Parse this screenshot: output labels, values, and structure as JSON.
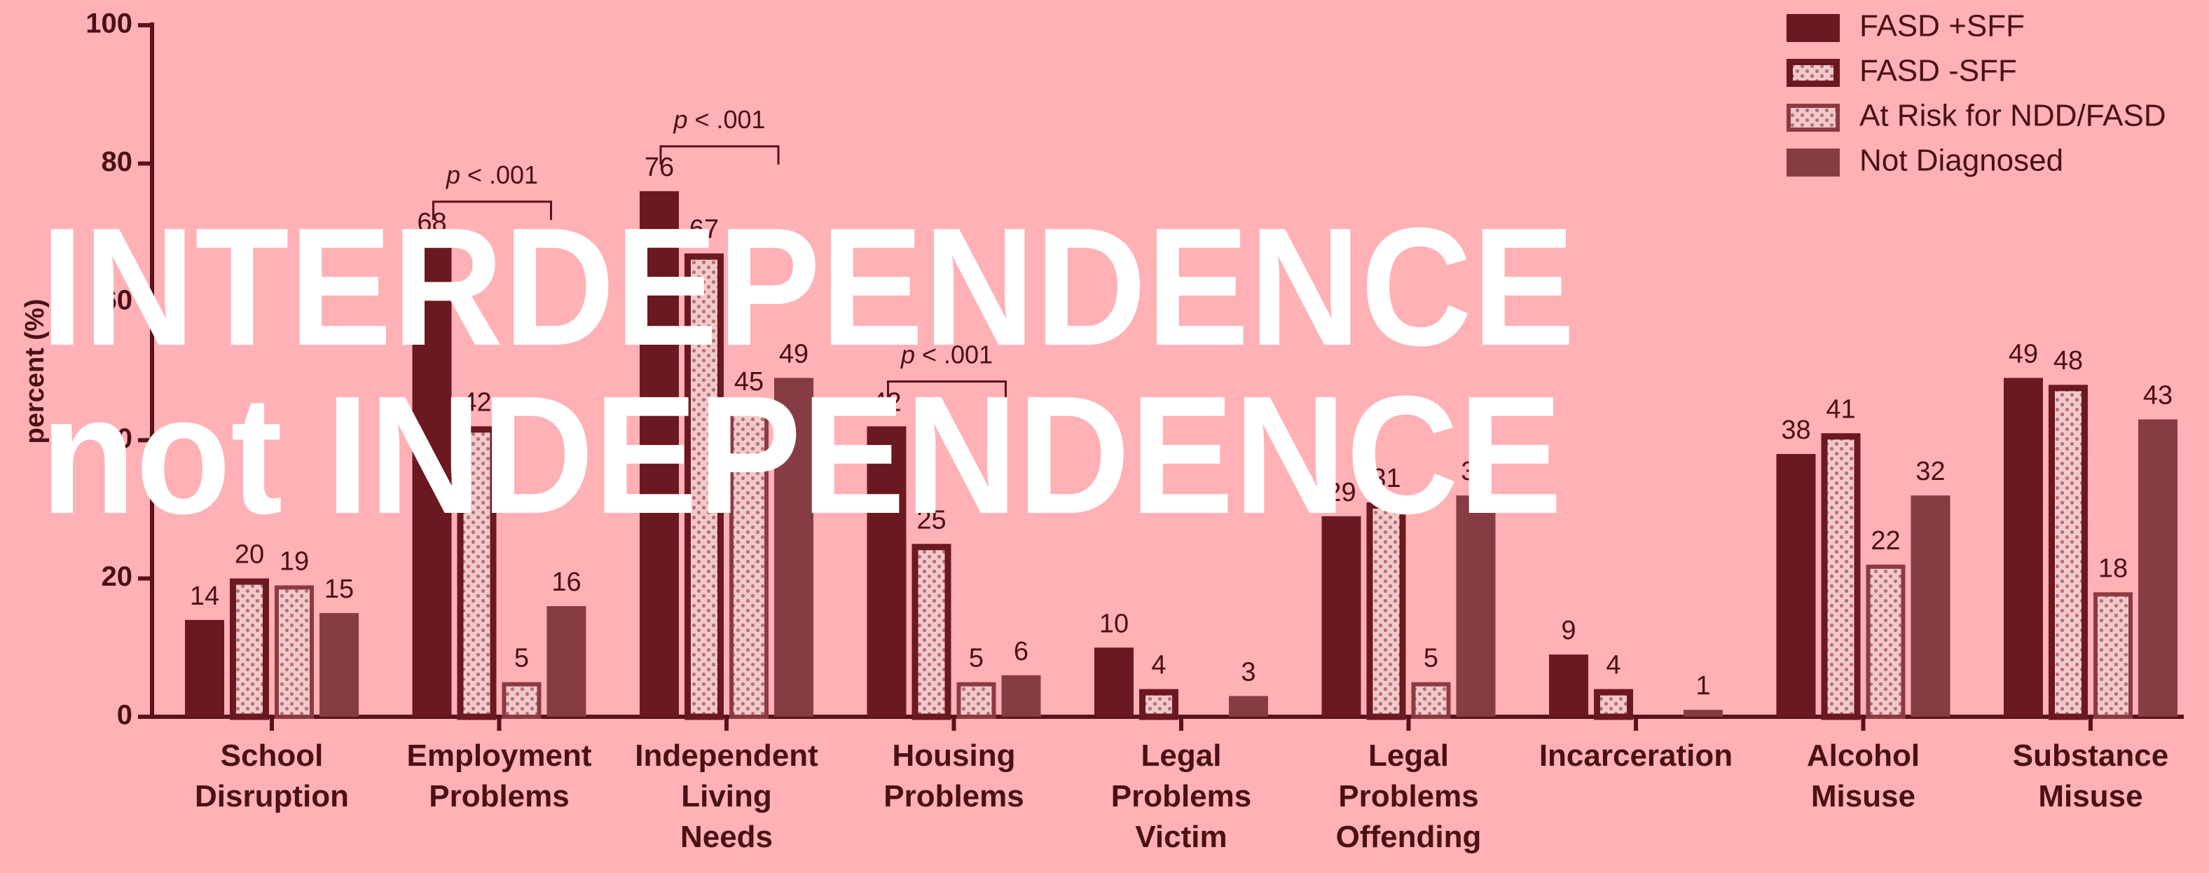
{
  "chart_data": {
    "type": "bar",
    "y_label": "percent (%)",
    "categories": [
      "School Disruption",
      "Employment Problems",
      "Independent Living Needs",
      "Housing Problems",
      "Legal Problems Victim",
      "Legal Problems Offending",
      "Incarceration",
      "Alcohol Misuse",
      "Substance Misuse"
    ],
    "series": [
      {
        "name": "FASD +SFF",
        "color": "#6b1820",
        "values": [
          14,
          68,
          76,
          42,
          10,
          29,
          9,
          38,
          49
        ]
      },
      {
        "name": "FASD -SFF",
        "color": "#6b1820",
        "values": [
          20,
          42,
          67,
          25,
          4,
          31,
          4,
          41,
          48
        ]
      },
      {
        "name": "At Risk for NDD/FASD",
        "color": "#8c3a42",
        "values": [
          19,
          5,
          45,
          5,
          null,
          5,
          null,
          22,
          18
        ]
      },
      {
        "name": "Not Diagnosed",
        "color": "#853c43",
        "values": [
          15,
          16,
          49,
          6,
          3,
          32,
          1,
          32,
          43
        ]
      }
    ],
    "annotations": [
      {
        "text": "p < .001",
        "category": 1
      },
      {
        "text": "p < .001",
        "category": 2
      },
      {
        "text": "p < .001",
        "category": 3
      }
    ],
    "ylim": [
      0,
      100
    ],
    "yticks": [
      0,
      20,
      40,
      60,
      80,
      100
    ],
    "legend": "top-right",
    "grid": false
  },
  "overlay": {
    "lines": [
      "INTERDEPENDENCE",
      "not INDEPENDENCE"
    ]
  }
}
